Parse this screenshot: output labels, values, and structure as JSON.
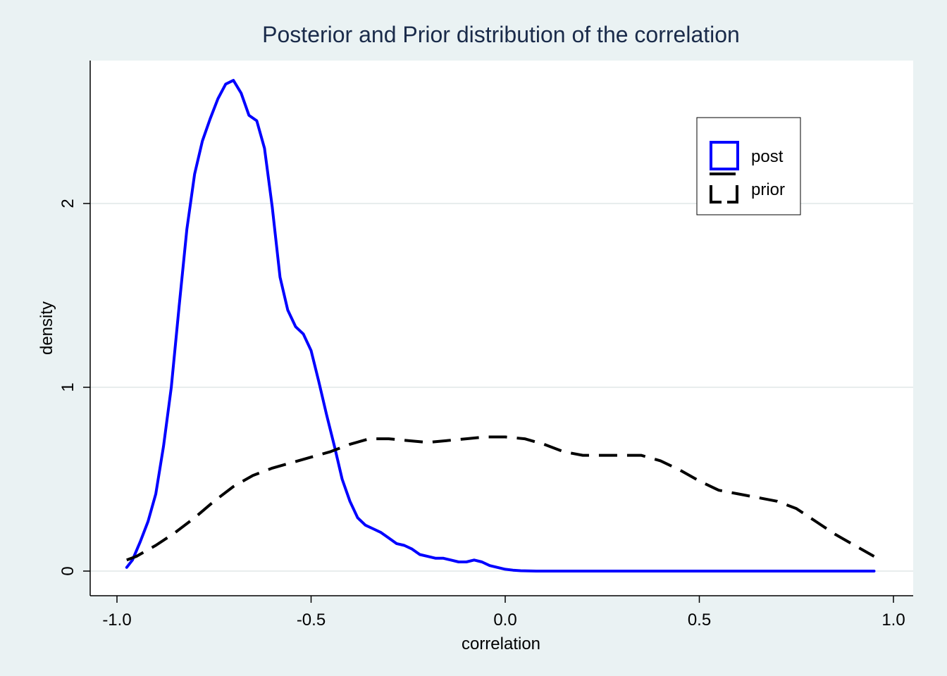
{
  "chart_data": {
    "type": "line",
    "title": "Posterior and Prior distribution of the correlation",
    "xlabel": "correlation",
    "ylabel": "density",
    "xlim": [
      -1.0,
      1.0
    ],
    "ylim": [
      0,
      2.7
    ],
    "x_ticks": [
      -1.0,
      -0.5,
      0.0,
      0.5,
      1.0
    ],
    "x_tick_labels": [
      "-1.0",
      "-0.5",
      "0.0",
      "0.5",
      "1.0"
    ],
    "y_ticks": [
      0,
      1,
      2
    ],
    "y_tick_labels": [
      "0",
      "1",
      "2"
    ],
    "grid": "horizontal",
    "legend_position": "top-right",
    "series": [
      {
        "name": "post",
        "color": "#0000ff",
        "style": "solid",
        "x": [
          -0.975,
          -0.96,
          -0.94,
          -0.92,
          -0.9,
          -0.88,
          -0.86,
          -0.84,
          -0.82,
          -0.8,
          -0.78,
          -0.76,
          -0.74,
          -0.72,
          -0.7,
          -0.68,
          -0.66,
          -0.64,
          -0.62,
          -0.6,
          -0.58,
          -0.56,
          -0.54,
          -0.52,
          -0.5,
          -0.48,
          -0.46,
          -0.44,
          -0.42,
          -0.4,
          -0.38,
          -0.36,
          -0.34,
          -0.32,
          -0.3,
          -0.28,
          -0.26,
          -0.24,
          -0.22,
          -0.2,
          -0.18,
          -0.16,
          -0.14,
          -0.12,
          -0.1,
          -0.08,
          -0.06,
          -0.04,
          -0.02,
          0.0,
          0.02,
          0.04,
          0.06,
          0.08,
          0.1,
          0.12,
          0.15,
          0.2,
          0.3,
          0.4,
          0.5,
          0.6,
          0.7,
          0.8,
          0.9,
          0.95
        ],
        "y": [
          0.02,
          0.06,
          0.16,
          0.27,
          0.42,
          0.68,
          1.0,
          1.44,
          1.86,
          2.16,
          2.34,
          2.46,
          2.57,
          2.65,
          2.67,
          2.6,
          2.48,
          2.45,
          2.3,
          1.98,
          1.6,
          1.42,
          1.33,
          1.29,
          1.2,
          1.03,
          0.85,
          0.68,
          0.5,
          0.38,
          0.29,
          0.25,
          0.23,
          0.21,
          0.18,
          0.15,
          0.14,
          0.12,
          0.09,
          0.08,
          0.07,
          0.07,
          0.06,
          0.05,
          0.05,
          0.06,
          0.05,
          0.03,
          0.02,
          0.01,
          0.005,
          0.002,
          0.001,
          0.0,
          0.0,
          0.0,
          0.0,
          0.0,
          0.0,
          0.0,
          0.0,
          0.0,
          0.0,
          0.0,
          0.0,
          0.0
        ]
      },
      {
        "name": "prior",
        "color": "#000000",
        "style": "dashed",
        "x": [
          -0.975,
          -0.95,
          -0.9,
          -0.85,
          -0.8,
          -0.75,
          -0.7,
          -0.65,
          -0.6,
          -0.55,
          -0.5,
          -0.45,
          -0.4,
          -0.35,
          -0.3,
          -0.25,
          -0.2,
          -0.15,
          -0.1,
          -0.05,
          0.0,
          0.05,
          0.1,
          0.15,
          0.2,
          0.25,
          0.3,
          0.35,
          0.4,
          0.45,
          0.5,
          0.55,
          0.6,
          0.65,
          0.7,
          0.75,
          0.8,
          0.85,
          0.9,
          0.95
        ],
        "y": [
          0.06,
          0.08,
          0.14,
          0.21,
          0.29,
          0.38,
          0.46,
          0.52,
          0.56,
          0.59,
          0.62,
          0.65,
          0.69,
          0.72,
          0.72,
          0.71,
          0.7,
          0.71,
          0.72,
          0.73,
          0.73,
          0.72,
          0.69,
          0.65,
          0.63,
          0.63,
          0.63,
          0.63,
          0.6,
          0.55,
          0.49,
          0.44,
          0.42,
          0.4,
          0.38,
          0.34,
          0.27,
          0.2,
          0.14,
          0.08
        ]
      }
    ]
  }
}
